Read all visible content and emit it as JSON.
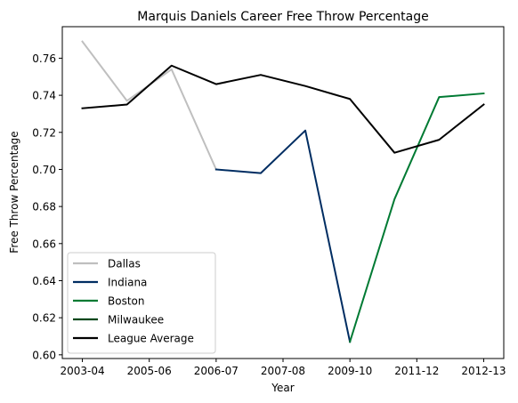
{
  "chart_data": {
    "type": "line",
    "title": "Marquis Daniels Career Free Throw Percentage",
    "xlabel": "Year",
    "ylabel": "Free Throw Percentage",
    "x_tick_labels": [
      "2003-04",
      "2005-06",
      "2006-07",
      "2007-08",
      "2009-10",
      "2011-12",
      "2012-13"
    ],
    "x_tick_positions": [
      0,
      1.5,
      3,
      4.5,
      6,
      7.5,
      9
    ],
    "xlim": [
      -0.45,
      9.45
    ],
    "ylim": [
      0.598,
      0.777
    ],
    "y_ticks": [
      0.6,
      0.62,
      0.64,
      0.66,
      0.68,
      0.7,
      0.72,
      0.74,
      0.76
    ],
    "y_tick_labels": [
      "0.60",
      "0.62",
      "0.64",
      "0.66",
      "0.68",
      "0.70",
      "0.72",
      "0.74",
      "0.76"
    ],
    "legend_position": "lower-left",
    "grid": false,
    "series": [
      {
        "name": "Dallas",
        "color": "#bfbfbf",
        "points": [
          [
            0,
            0.769
          ],
          [
            1,
            0.737
          ],
          [
            2,
            0.754
          ],
          [
            3,
            0.7
          ]
        ]
      },
      {
        "name": "Indiana",
        "color": "#002d62",
        "points": [
          [
            3,
            0.7
          ],
          [
            4,
            0.698
          ],
          [
            5,
            0.721
          ],
          [
            6,
            0.607
          ]
        ]
      },
      {
        "name": "Boston",
        "color": "#007a33",
        "points": [
          [
            6,
            0.607
          ],
          [
            7,
            0.684
          ],
          [
            8,
            0.739
          ],
          [
            9,
            0.741
          ]
        ]
      },
      {
        "name": "Milwaukee",
        "color": "#00471b",
        "points": []
      },
      {
        "name": "League Average",
        "color": "#000000",
        "points": [
          [
            0,
            0.733
          ],
          [
            1,
            0.735
          ],
          [
            2,
            0.756
          ],
          [
            3,
            0.746
          ],
          [
            4,
            0.751
          ],
          [
            5,
            0.745
          ],
          [
            6,
            0.738
          ],
          [
            7,
            0.709
          ],
          [
            8,
            0.716
          ],
          [
            9,
            0.735
          ]
        ]
      }
    ]
  }
}
